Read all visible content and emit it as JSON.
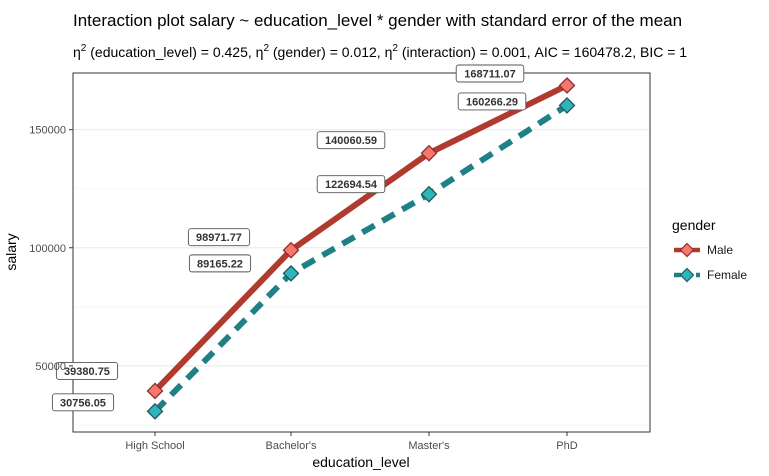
{
  "chart_data": {
    "type": "line",
    "title": "Interaction plot  salary ~ education_level * gender with standard error of the mean",
    "subtitle_parts": {
      "eta": "η",
      "sup": "2",
      "p1": " (education_level) = 0.425, ",
      "p2": " (gender) = 0.012, ",
      "p3": " (interaction) = 0.001, AIC = 160478.2, BIC = 1"
    },
    "xlabel": "education_level",
    "ylabel": "salary",
    "categories": [
      "High School",
      "Bachelor's",
      "Master's",
      "PhD"
    ],
    "ylim": [
      22000,
      174000
    ],
    "yticks": [
      50000,
      100000,
      150000
    ],
    "ytick_labels": [
      "50000",
      "100000",
      "150000"
    ],
    "legend_title": "gender",
    "legend_position": "right",
    "series": [
      {
        "name": "Male",
        "values": [
          39380.75,
          98971.77,
          140060.59,
          168711.07
        ],
        "labels": [
          "39380.75",
          "98971.77",
          "140060.59",
          "168711.07"
        ],
        "line_color": "#B03A2E",
        "fill_color": "#F8766D",
        "line_style": "solid"
      },
      {
        "name": "Female",
        "values": [
          30756.05,
          89165.22,
          122694.54,
          160266.29
        ],
        "labels": [
          "30756.05",
          "89165.22",
          "122694.54",
          "160266.29"
        ],
        "line_color": "#1F8085",
        "fill_color": "#2EB4BC",
        "line_style": "dashed"
      }
    ]
  }
}
